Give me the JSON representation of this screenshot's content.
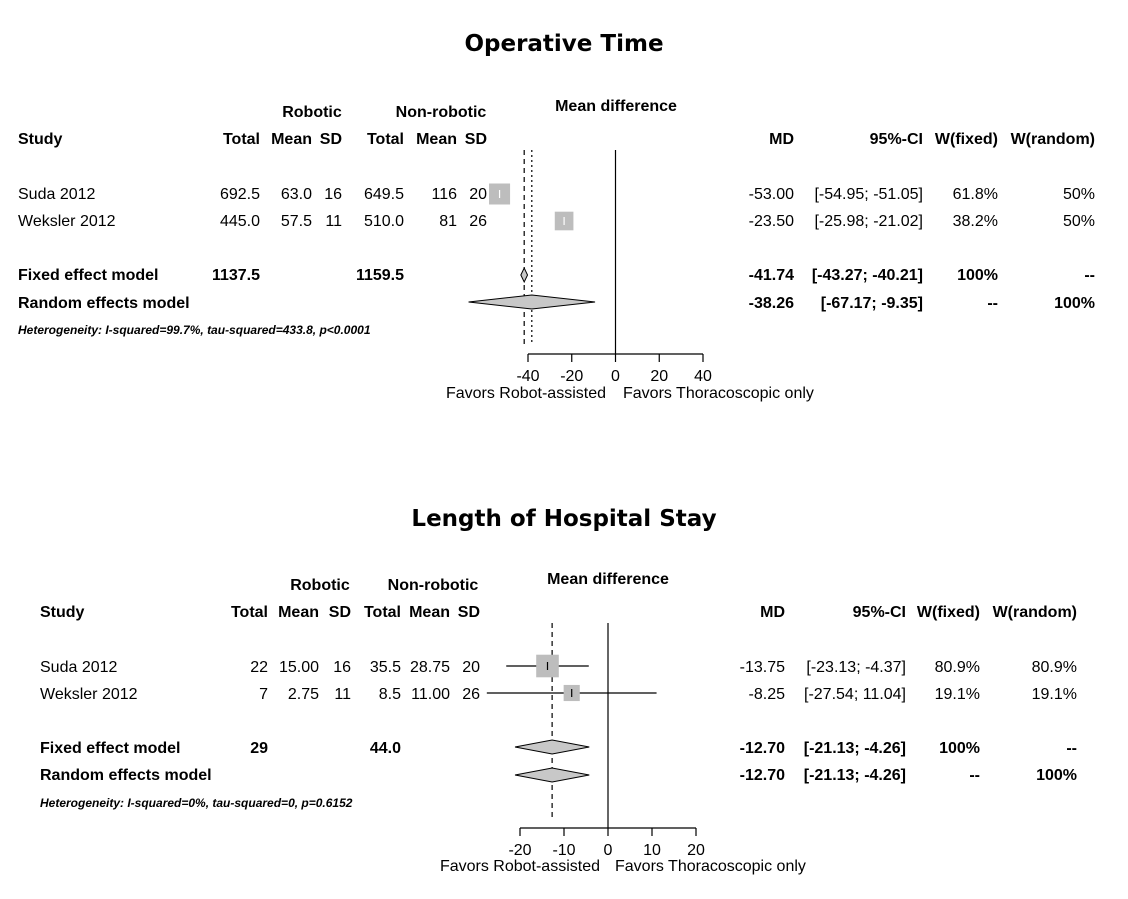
{
  "chart_data": [
    {
      "type": "forest",
      "title": "Operative Time",
      "group_headers": {
        "experimental": "Robotic",
        "control": "Non-robotic"
      },
      "plot_header": "Mean difference",
      "columns": {
        "study": "Study",
        "total_e": "Total",
        "mean_e": "Mean",
        "sd_e": "SD",
        "total_c": "Total",
        "mean_c": "Mean",
        "sd_c": "SD",
        "md": "MD",
        "ci": "95%-CI",
        "w_fixed": "W(fixed)",
        "w_random": "W(random)"
      },
      "studies": [
        {
          "name": "Suda 2012",
          "total_e": "692.5",
          "mean_e": "63.0",
          "sd_e": "16",
          "total_c": "649.5",
          "mean_c": "116",
          "sd_c": "20",
          "md": "-53.00",
          "ci": "[-54.95; -51.05]",
          "w_fixed": "61.8%",
          "w_random": "50%",
          "md_value": -53.0,
          "ci_low": -54.95,
          "ci_high": -51.05,
          "weight": 0.618
        },
        {
          "name": "Weksler 2012",
          "total_e": "445.0",
          "mean_e": "57.5",
          "sd_e": "11",
          "total_c": "510.0",
          "mean_c": "81",
          "sd_c": "26",
          "md": "-23.50",
          "ci": "[-25.98; -21.02]",
          "w_fixed": "38.2%",
          "w_random": "50%",
          "md_value": -23.5,
          "ci_low": -25.98,
          "ci_high": -21.02,
          "weight": 0.382
        }
      ],
      "fixed": {
        "label": "Fixed effect model",
        "total_e": "1137.5",
        "total_c": "1159.5",
        "md": "-41.74",
        "ci": "[-43.27; -40.21]",
        "w_fixed": "100%",
        "w_random": "--",
        "md_value": -41.74,
        "ci_low": -43.27,
        "ci_high": -40.21
      },
      "random": {
        "label": "Random effects model",
        "md": "-38.26",
        "ci": "[-67.17; -9.35]",
        "w_fixed": "--",
        "w_random": "100%",
        "md_value": -38.26,
        "ci_low": -67.17,
        "ci_high": -9.35
      },
      "heterogeneity": "Heterogeneity: I-squared=99.7%, tau-squared=433.8, p<0.0001",
      "xlim": [
        -40,
        40
      ],
      "ticks": [
        -40,
        -20,
        0,
        20,
        40
      ],
      "tick_labels": [
        "-40",
        "-20",
        "0",
        "20",
        "40"
      ],
      "xlabel_left": "Favors Robot-assisted",
      "xlabel_right": "Favors Thoracoscopic only"
    },
    {
      "type": "forest",
      "title": "Length of Hospital Stay",
      "group_headers": {
        "experimental": "Robotic",
        "control": "Non-robotic"
      },
      "plot_header": "Mean difference",
      "columns": {
        "study": "Study",
        "total_e": "Total",
        "mean_e": "Mean",
        "sd_e": "SD",
        "total_c": "Total",
        "mean_c": "Mean",
        "sd_c": "SD",
        "md": "MD",
        "ci": "95%-CI",
        "w_fixed": "W(fixed)",
        "w_random": "W(random)"
      },
      "studies": [
        {
          "name": "Suda 2012",
          "total_e": "22",
          "mean_e": "15.00",
          "sd_e": "16",
          "total_c": "35.5",
          "mean_c": "28.75",
          "sd_c": "20",
          "md": "-13.75",
          "ci": "[-23.13; -4.37]",
          "w_fixed": "80.9%",
          "w_random": "80.9%",
          "md_value": -13.75,
          "ci_low": -23.13,
          "ci_high": -4.37,
          "weight": 0.809
        },
        {
          "name": "Weksler 2012",
          "total_e": "7",
          "mean_e": "2.75",
          "sd_e": "11",
          "total_c": "8.5",
          "mean_c": "11.00",
          "sd_c": "26",
          "md": "-8.25",
          "ci": "[-27.54; 11.04]",
          "w_fixed": "19.1%",
          "w_random": "19.1%",
          "md_value": -8.25,
          "ci_low": -27.54,
          "ci_high": 11.04,
          "weight": 0.191
        }
      ],
      "fixed": {
        "label": "Fixed effect model",
        "total_e": "29",
        "total_c": "44.0",
        "md": "-12.70",
        "ci": "[-21.13; -4.26]",
        "w_fixed": "100%",
        "w_random": "--",
        "md_value": -12.7,
        "ci_low": -21.13,
        "ci_high": -4.26
      },
      "random": {
        "label": "Random effects model",
        "md": "-12.70",
        "ci": "[-21.13; -4.26]",
        "w_fixed": "--",
        "w_random": "100%",
        "md_value": -12.7,
        "ci_low": -21.13,
        "ci_high": -4.26
      },
      "heterogeneity": "Heterogeneity: I-squared=0%, tau-squared=0, p=0.6152",
      "xlim": [
        -20,
        20
      ],
      "ticks": [
        -20,
        -10,
        0,
        10,
        20
      ],
      "tick_labels": [
        "-20",
        "-10",
        "0",
        "10",
        "20"
      ],
      "xlabel_left": "Favors Robot-assisted",
      "xlabel_right": "Favors Thoracoscopic only"
    }
  ]
}
